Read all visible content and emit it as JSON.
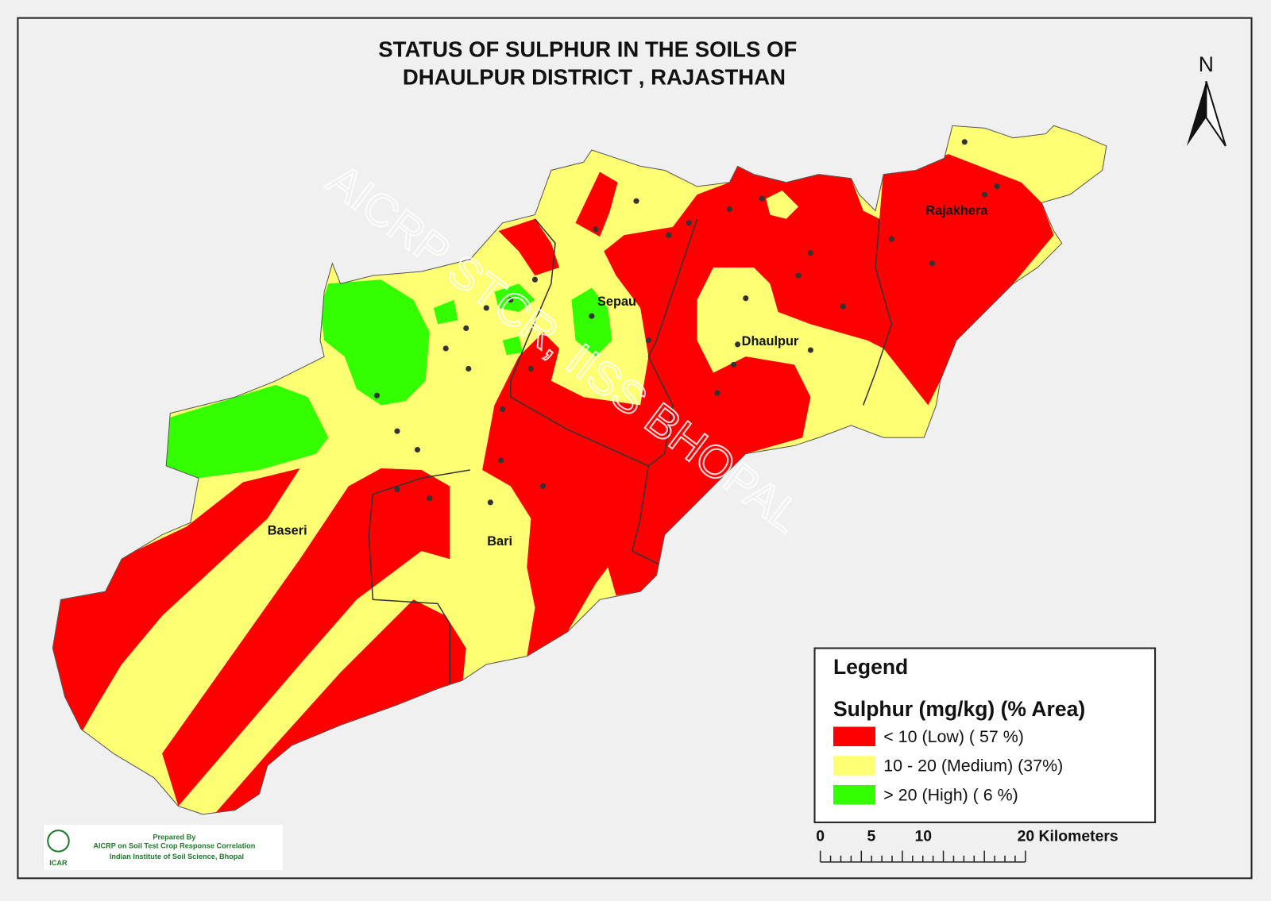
{
  "title_line1": "STATUS OF SULPHUR   IN THE SOILS OF",
  "title_line2": "DHAULPUR    DISTRICT , RAJASTHAN",
  "north": "N",
  "places": [
    "Rajakhera",
    "Sepau",
    "Dhaulpur",
    "Baseri",
    "Bari"
  ],
  "watermark": "AICRP STCR, IISS BHOPAL",
  "legend": {
    "heading": "Legend",
    "subtitle": "Sulphur (mg/kg) (% Area)",
    "items": [
      {
        "label": "< 10 (Low) ( 57 %)",
        "color": "#ff0000"
      },
      {
        "label": "10 - 20 (Medium) (37%)",
        "color": "#ffff73"
      },
      {
        "label": "> 20  (High) ( 6 %)",
        "color": "#33ff00"
      }
    ]
  },
  "scale_labels": [
    "0",
    "5",
    "10",
    "20 Kilometers"
  ],
  "credit": {
    "line1": "Prepared By",
    "line2": "AICRP on Soil Test Crop Response Correlation",
    "line3": "Indian Institute of Soil Science, Bhopal",
    "logo_text": "ICAR"
  }
}
